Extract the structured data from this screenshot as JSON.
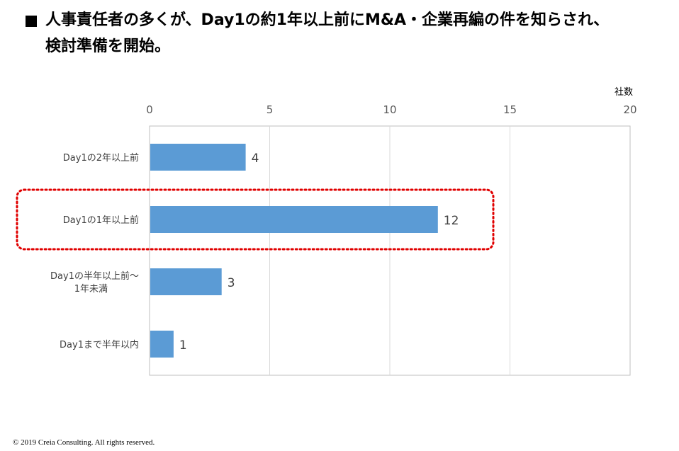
{
  "title": {
    "line1": "人事責任者の多くが、Day1の約1年以上前にM&A・企業再編の件を知らされ、",
    "line2": "検討準備を開始。"
  },
  "chart_data": {
    "type": "bar",
    "orientation": "horizontal",
    "categories": [
      [
        "Day1の2年以上前"
      ],
      [
        "Day1の1年以上前"
      ],
      [
        "Day1の半年以上前～",
        "1年未満"
      ],
      [
        "Day1まで半年以内"
      ]
    ],
    "values": [
      4,
      12,
      3,
      1
    ],
    "xlabel": "社数",
    "xlim": [
      0,
      20
    ],
    "xticks": [
      0,
      5,
      10,
      15,
      20
    ],
    "highlight_index": 1,
    "grid": true,
    "bar_color": "#5B9BD5",
    "grid_color": "#D9D9D9",
    "highlight_color": "#E00000"
  },
  "footer": {
    "copyright": "© 2019 Creia Consulting.  All rights reserved."
  }
}
